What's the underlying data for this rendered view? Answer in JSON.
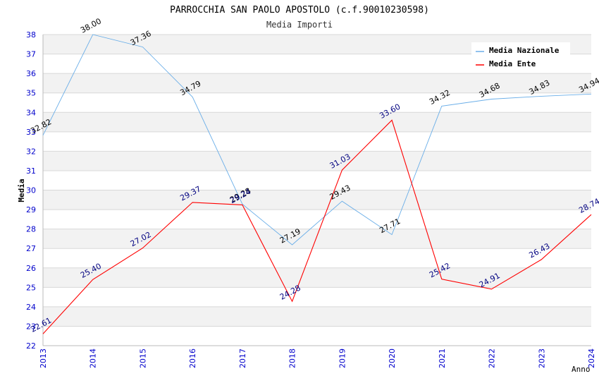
{
  "chart_data": {
    "type": "line",
    "title": "PARROCCHIA SAN PAOLO APOSTOLO (c.f.90010230598)",
    "subtitle": "Media Importi",
    "xlabel": "Anno",
    "ylabel": "Media",
    "ylim": [
      22,
      38
    ],
    "yticks": [
      22,
      23,
      24,
      25,
      26,
      27,
      28,
      29,
      30,
      31,
      32,
      33,
      34,
      35,
      36,
      37,
      38
    ],
    "categories": [
      "2013",
      "2014",
      "2015",
      "2016",
      "2017",
      "2018",
      "2019",
      "2020",
      "2021",
      "2022",
      "2023",
      "2024"
    ],
    "legend_position": "top-right",
    "series": [
      {
        "name": "Media Nazionale",
        "color": "#6aaee8",
        "label_color": "#000000",
        "values": [
          32.82,
          38.0,
          37.36,
          34.79,
          29.28,
          27.19,
          29.43,
          27.71,
          34.32,
          34.68,
          34.83,
          34.94
        ],
        "labels": [
          "32.82",
          "38.00",
          "37.36",
          "34.79",
          "29.28",
          "27.19",
          "29.43",
          "27.71",
          "34.32",
          "34.68",
          "34.83",
          "34.94"
        ]
      },
      {
        "name": "Media Ente",
        "color": "#ff0000",
        "label_color": "#000080",
        "values": [
          22.61,
          25.4,
          27.02,
          29.37,
          29.24,
          24.28,
          31.03,
          33.6,
          25.42,
          24.91,
          26.43,
          28.74
        ],
        "labels": [
          "22.61",
          "25.40",
          "27.02",
          "29.37",
          "29.24",
          "24.28",
          "31.03",
          "33.60",
          "25.42",
          "24.91",
          "26.43",
          "28.74"
        ]
      }
    ],
    "colors": {
      "tick_label": "#0000cc",
      "band": "#f2f2f2",
      "grid": "#d8d8d8"
    }
  }
}
